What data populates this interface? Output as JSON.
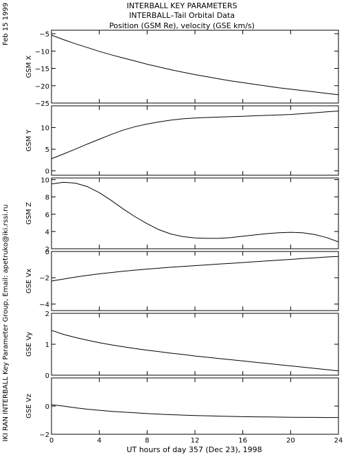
{
  "header": {
    "title_line1": "INTERBALL KEY PARAMETERS",
    "title_line2": "INTERBALL–Tail Orbital Data",
    "title_line3": "Position (GSM Re), velocity (GSE km/s)"
  },
  "side_labels": {
    "date": "Feb 15 1999",
    "credit": "IKI RAN INTERBALL Key Parameter Group, Email: apetruko@iki.rssi.ru"
  },
  "x_axis": {
    "label": "UT hours of day 357 (Dec 23), 1998",
    "ticks": [
      0,
      4,
      8,
      12,
      16,
      20,
      24
    ],
    "range": [
      0,
      24
    ]
  },
  "chart_data": [
    {
      "type": "line",
      "ylabel": "GSM X",
      "xlim": [
        0,
        24
      ],
      "ylim": [
        -25,
        -4
      ],
      "yticks": [
        -5,
        -10,
        -15,
        -20,
        -25
      ],
      "x": [
        0,
        1,
        2,
        3,
        4,
        5,
        6,
        7,
        8,
        9,
        10,
        11,
        12,
        13,
        14,
        15,
        16,
        17,
        18,
        19,
        20,
        21,
        22,
        23,
        24
      ],
      "values": [
        -5.4,
        -6.7,
        -7.9,
        -9.0,
        -10.1,
        -11.1,
        -12.0,
        -12.9,
        -13.8,
        -14.6,
        -15.4,
        -16.1,
        -16.8,
        -17.4,
        -18.0,
        -18.6,
        -19.1,
        -19.6,
        -20.1,
        -20.6,
        -21.0,
        -21.4,
        -21.8,
        -22.2,
        -22.6
      ]
    },
    {
      "type": "line",
      "ylabel": "GSM Y",
      "xlim": [
        0,
        24
      ],
      "ylim": [
        -1,
        15
      ],
      "yticks": [
        0,
        5,
        10
      ],
      "x": [
        0,
        1,
        2,
        3,
        4,
        5,
        6,
        7,
        8,
        9,
        10,
        11,
        12,
        13,
        14,
        15,
        16,
        17,
        18,
        19,
        20,
        21,
        22,
        23,
        24
      ],
      "values": [
        2.8,
        3.9,
        5.0,
        6.2,
        7.3,
        8.4,
        9.4,
        10.2,
        10.8,
        11.3,
        11.7,
        12.0,
        12.2,
        12.3,
        12.4,
        12.5,
        12.6,
        12.7,
        12.8,
        12.9,
        13.0,
        13.2,
        13.4,
        13.6,
        13.8
      ]
    },
    {
      "type": "line",
      "ylabel": "GSM Z",
      "xlim": [
        0,
        24
      ],
      "ylim": [
        2,
        10.2
      ],
      "yticks": [
        2,
        4,
        6,
        8,
        10
      ],
      "x": [
        0,
        1,
        2,
        3,
        4,
        5,
        6,
        7,
        8,
        9,
        10,
        11,
        12,
        13,
        14,
        15,
        16,
        17,
        18,
        19,
        20,
        21,
        22,
        23,
        24
      ],
      "values": [
        9.5,
        9.7,
        9.6,
        9.2,
        8.5,
        7.6,
        6.6,
        5.7,
        4.9,
        4.2,
        3.7,
        3.4,
        3.25,
        3.2,
        3.2,
        3.3,
        3.45,
        3.6,
        3.75,
        3.85,
        3.9,
        3.85,
        3.65,
        3.3,
        2.8
      ]
    },
    {
      "type": "line",
      "ylabel": "GSE Vx",
      "xlim": [
        0,
        24
      ],
      "ylim": [
        -4.5,
        0
      ],
      "yticks": [
        0,
        -2,
        -4
      ],
      "x": [
        0,
        1,
        2,
        3,
        4,
        5,
        6,
        7,
        8,
        9,
        10,
        11,
        12,
        13,
        14,
        15,
        16,
        17,
        18,
        19,
        20,
        21,
        22,
        23,
        24
      ],
      "values": [
        -2.25,
        -2.1,
        -1.95,
        -1.82,
        -1.7,
        -1.6,
        -1.5,
        -1.42,
        -1.34,
        -1.27,
        -1.2,
        -1.14,
        -1.08,
        -1.02,
        -0.96,
        -0.9,
        -0.84,
        -0.78,
        -0.72,
        -0.66,
        -0.6,
        -0.54,
        -0.48,
        -0.42,
        -0.38
      ]
    },
    {
      "type": "line",
      "ylabel": "GSE Vy",
      "xlim": [
        0,
        24
      ],
      "ylim": [
        0,
        2
      ],
      "yticks": [
        2,
        1,
        0
      ],
      "x": [
        0,
        1,
        2,
        3,
        4,
        5,
        6,
        7,
        8,
        9,
        10,
        11,
        12,
        13,
        14,
        15,
        16,
        17,
        18,
        19,
        20,
        21,
        22,
        23,
        24
      ],
      "values": [
        1.45,
        1.32,
        1.22,
        1.13,
        1.05,
        0.98,
        0.92,
        0.86,
        0.81,
        0.76,
        0.71,
        0.67,
        0.62,
        0.58,
        0.54,
        0.5,
        0.46,
        0.42,
        0.38,
        0.34,
        0.3,
        0.26,
        0.22,
        0.18,
        0.14
      ]
    },
    {
      "type": "line",
      "ylabel": "GSE Vz",
      "xlim": [
        0,
        24
      ],
      "ylim": [
        -2,
        2
      ],
      "yticks": [
        0,
        -2
      ],
      "x": [
        0,
        1,
        2,
        3,
        4,
        5,
        6,
        7,
        8,
        9,
        10,
        11,
        12,
        13,
        14,
        15,
        16,
        17,
        18,
        19,
        20,
        21,
        22,
        23,
        24
      ],
      "values": [
        0.1,
        0.0,
        -0.12,
        -0.22,
        -0.3,
        -0.37,
        -0.43,
        -0.48,
        -0.53,
        -0.57,
        -0.61,
        -0.64,
        -0.67,
        -0.69,
        -0.71,
        -0.73,
        -0.75,
        -0.76,
        -0.77,
        -0.78,
        -0.79,
        -0.8,
        -0.8,
        -0.81,
        -0.81
      ]
    }
  ]
}
